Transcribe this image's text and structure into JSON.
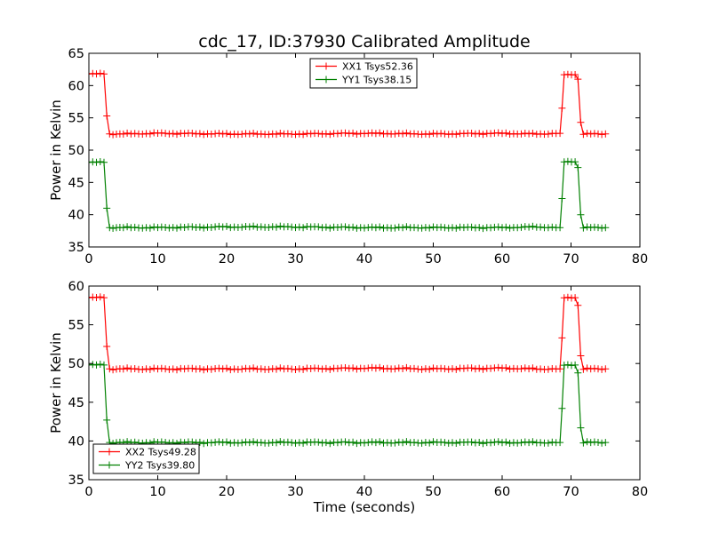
{
  "title": "cdc_17, ID:37930 Calibrated Amplitude",
  "chart_data": [
    {
      "type": "line",
      "ylabel": "Power in Kelvin",
      "xlabel": "",
      "xlim": [
        0,
        80
      ],
      "ylim": [
        35,
        65
      ],
      "xticks": [
        0,
        10,
        20,
        30,
        40,
        50,
        60,
        70,
        80
      ],
      "yticks": [
        35,
        40,
        45,
        50,
        55,
        60,
        65
      ],
      "legend_position": "top-center",
      "series": [
        {
          "name": "XX1 Tsys52.36",
          "color": "#ff0000",
          "x": [
            0,
            2.2,
            2.6,
            3.0,
            5,
            10,
            20,
            30,
            40,
            50,
            60,
            65,
            68.4,
            68.7,
            69.0,
            70.6,
            71.0,
            71.4,
            71.8,
            75
          ],
          "y": [
            61.8,
            61.8,
            55.3,
            52.5,
            52.5,
            52.6,
            52.5,
            52.5,
            52.6,
            52.5,
            52.6,
            52.5,
            52.6,
            56.5,
            61.7,
            61.7,
            61.0,
            54.3,
            52.5,
            52.5
          ]
        },
        {
          "name": "YY1 Tsys38.15",
          "color": "#008000",
          "x": [
            0,
            2.2,
            2.6,
            3.0,
            5,
            10,
            20,
            30,
            40,
            50,
            60,
            65,
            68.4,
            68.7,
            69.0,
            70.6,
            71.0,
            71.4,
            71.8,
            75
          ],
          "y": [
            48.1,
            48.1,
            41.0,
            38.0,
            38.0,
            38.0,
            38.1,
            38.1,
            38.0,
            38.0,
            38.0,
            38.1,
            38.0,
            42.5,
            48.2,
            48.2,
            47.3,
            40.0,
            38.0,
            38.0
          ]
        }
      ]
    },
    {
      "type": "line",
      "ylabel": "Power in Kelvin",
      "xlabel": "Time (seconds)",
      "xlim": [
        0,
        80
      ],
      "ylim": [
        35,
        60
      ],
      "xticks": [
        0,
        10,
        20,
        30,
        40,
        50,
        60,
        70,
        80
      ],
      "yticks": [
        35,
        40,
        45,
        50,
        55,
        60
      ],
      "legend_position": "lower-left",
      "series": [
        {
          "name": "XX2 Tsys49.28",
          "color": "#ff0000",
          "x": [
            0,
            2.2,
            2.6,
            3.0,
            5,
            10,
            20,
            30,
            40,
            50,
            60,
            65,
            68.4,
            68.7,
            69.0,
            70.6,
            71.0,
            71.4,
            71.8,
            75
          ],
          "y": [
            58.5,
            58.5,
            52.2,
            49.3,
            49.3,
            49.3,
            49.3,
            49.3,
            49.4,
            49.3,
            49.4,
            49.3,
            49.3,
            53.3,
            58.5,
            58.5,
            57.5,
            51.0,
            49.3,
            49.3
          ]
        },
        {
          "name": "YY2 Tsys39.80",
          "color": "#008000",
          "x": [
            0,
            2.2,
            2.6,
            3.0,
            5,
            10,
            20,
            30,
            40,
            50,
            60,
            65,
            68.4,
            68.7,
            69.0,
            70.6,
            71.0,
            71.4,
            71.8,
            75
          ],
          "y": [
            49.8,
            49.8,
            42.7,
            39.8,
            39.8,
            39.8,
            39.8,
            39.8,
            39.8,
            39.8,
            39.8,
            39.8,
            39.8,
            44.2,
            49.8,
            49.8,
            48.8,
            41.7,
            39.8,
            39.8
          ]
        }
      ]
    }
  ]
}
